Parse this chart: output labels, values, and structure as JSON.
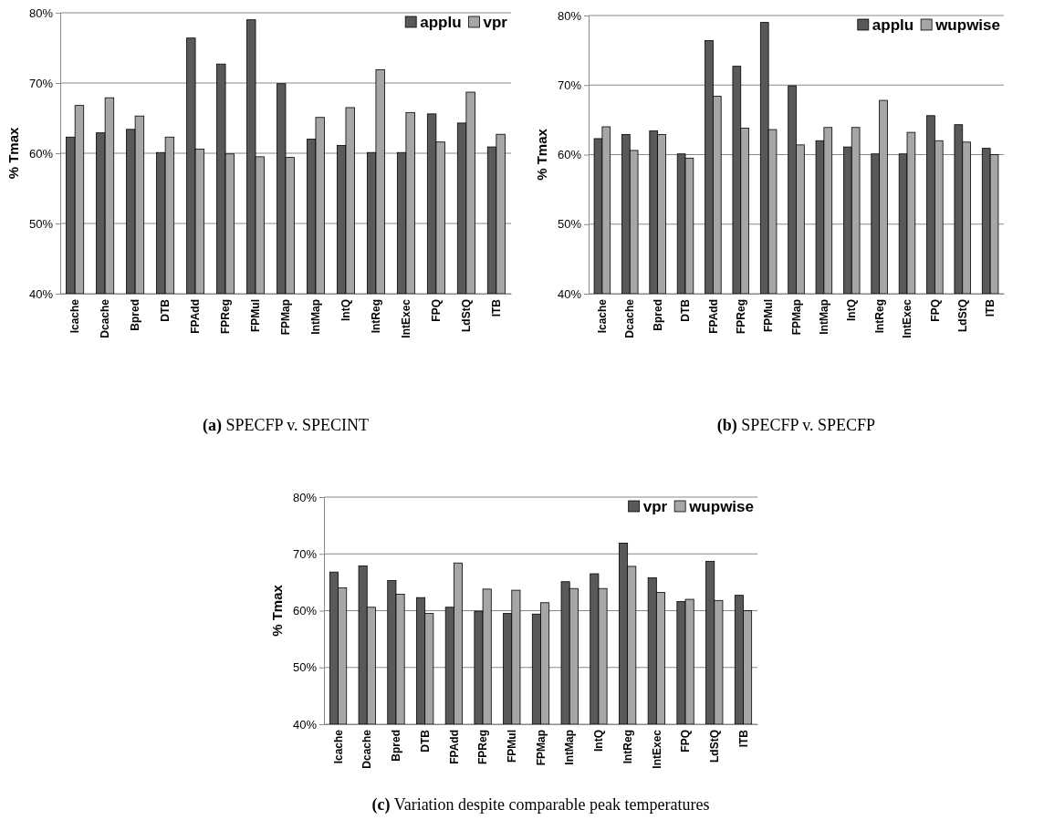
{
  "chart_data": [
    {
      "type": "bar",
      "title": "(a) SPECFP v. SPECINT",
      "ylabel": "% Tmax",
      "categories": [
        "Icache",
        "Dcache",
        "Bpred",
        "DTB",
        "FPAdd",
        "FPReg",
        "FPMul",
        "FPMap",
        "IntMap",
        "IntQ",
        "IntReg",
        "IntExec",
        "FPQ",
        "LdStQ",
        "ITB"
      ],
      "series": [
        {
          "name": "applu",
          "color": "#595959",
          "values": [
            62.3,
            62.9,
            63.4,
            60.1,
            76.4,
            72.7,
            79.0,
            69.9,
            62.0,
            61.1,
            60.1,
            60.1,
            65.6,
            64.3,
            60.9
          ]
        },
        {
          "name": "vpr",
          "color": "#a6a6a6",
          "values": [
            66.8,
            67.9,
            65.3,
            62.3,
            60.6,
            59.9,
            59.5,
            59.4,
            65.1,
            66.5,
            71.9,
            65.8,
            61.6,
            68.7,
            62.7
          ]
        }
      ],
      "ylim": [
        40,
        80
      ],
      "yticks": [
        {
          "value": 40,
          "label": "40%"
        },
        {
          "value": 50,
          "label": "50%"
        },
        {
          "value": 60,
          "label": "60%"
        },
        {
          "value": 70,
          "label": "70%"
        },
        {
          "value": 80,
          "label": "80%"
        }
      ],
      "grid": "y",
      "legend": "top right"
    },
    {
      "type": "bar",
      "title": "(b) SPECFP v. SPECFP",
      "ylabel": "% Tmax",
      "categories": [
        "Icache",
        "Dcache",
        "Bpred",
        "DTB",
        "FPAdd",
        "FPReg",
        "FPMul",
        "FPMap",
        "IntMap",
        "IntQ",
        "IntReg",
        "IntExec",
        "FPQ",
        "LdStQ",
        "ITB"
      ],
      "series": [
        {
          "name": "applu",
          "color": "#595959",
          "values": [
            62.3,
            62.9,
            63.4,
            60.1,
            76.4,
            72.7,
            79.0,
            69.9,
            62.0,
            61.1,
            60.1,
            60.1,
            65.6,
            64.3,
            60.9
          ]
        },
        {
          "name": "wupwise",
          "color": "#a6a6a6",
          "values": [
            64.0,
            60.6,
            62.9,
            59.5,
            68.4,
            63.8,
            63.6,
            61.4,
            63.9,
            63.9,
            67.8,
            63.2,
            62.0,
            61.8,
            60.0
          ]
        }
      ],
      "ylim": [
        40,
        80
      ],
      "yticks": [
        {
          "value": 40,
          "label": "40%"
        },
        {
          "value": 50,
          "label": "50%"
        },
        {
          "value": 60,
          "label": "60%"
        },
        {
          "value": 70,
          "label": "70%"
        },
        {
          "value": 80,
          "label": "80%"
        }
      ],
      "grid": "y",
      "legend": "top right"
    },
    {
      "type": "bar",
      "title": "(c) Variation despite comparable peak temperatures",
      "ylabel": "% Tmax",
      "categories": [
        "Icache",
        "Dcache",
        "Bpred",
        "DTB",
        "FPAdd",
        "FPReg",
        "FPMul",
        "FPMap",
        "IntMap",
        "IntQ",
        "IntReg",
        "IntExec",
        "FPQ",
        "LdStQ",
        "ITB"
      ],
      "series": [
        {
          "name": "vpr",
          "color": "#595959",
          "values": [
            66.8,
            67.9,
            65.3,
            62.3,
            60.6,
            59.9,
            59.5,
            59.4,
            65.1,
            66.5,
            71.9,
            65.8,
            61.6,
            68.7,
            62.7
          ]
        },
        {
          "name": "wupwise",
          "color": "#a6a6a6",
          "values": [
            64.0,
            60.6,
            62.9,
            59.5,
            68.4,
            63.8,
            63.6,
            61.4,
            63.9,
            63.9,
            67.8,
            63.2,
            62.0,
            61.8,
            60.0
          ]
        }
      ],
      "ylim": [
        40,
        80
      ],
      "yticks": [
        {
          "value": 40,
          "label": "40%"
        },
        {
          "value": 50,
          "label": "50%"
        },
        {
          "value": 60,
          "label": "60%"
        },
        {
          "value": 70,
          "label": "70%"
        },
        {
          "value": 80,
          "label": "80%"
        }
      ],
      "grid": "y",
      "legend": "top right"
    }
  ]
}
